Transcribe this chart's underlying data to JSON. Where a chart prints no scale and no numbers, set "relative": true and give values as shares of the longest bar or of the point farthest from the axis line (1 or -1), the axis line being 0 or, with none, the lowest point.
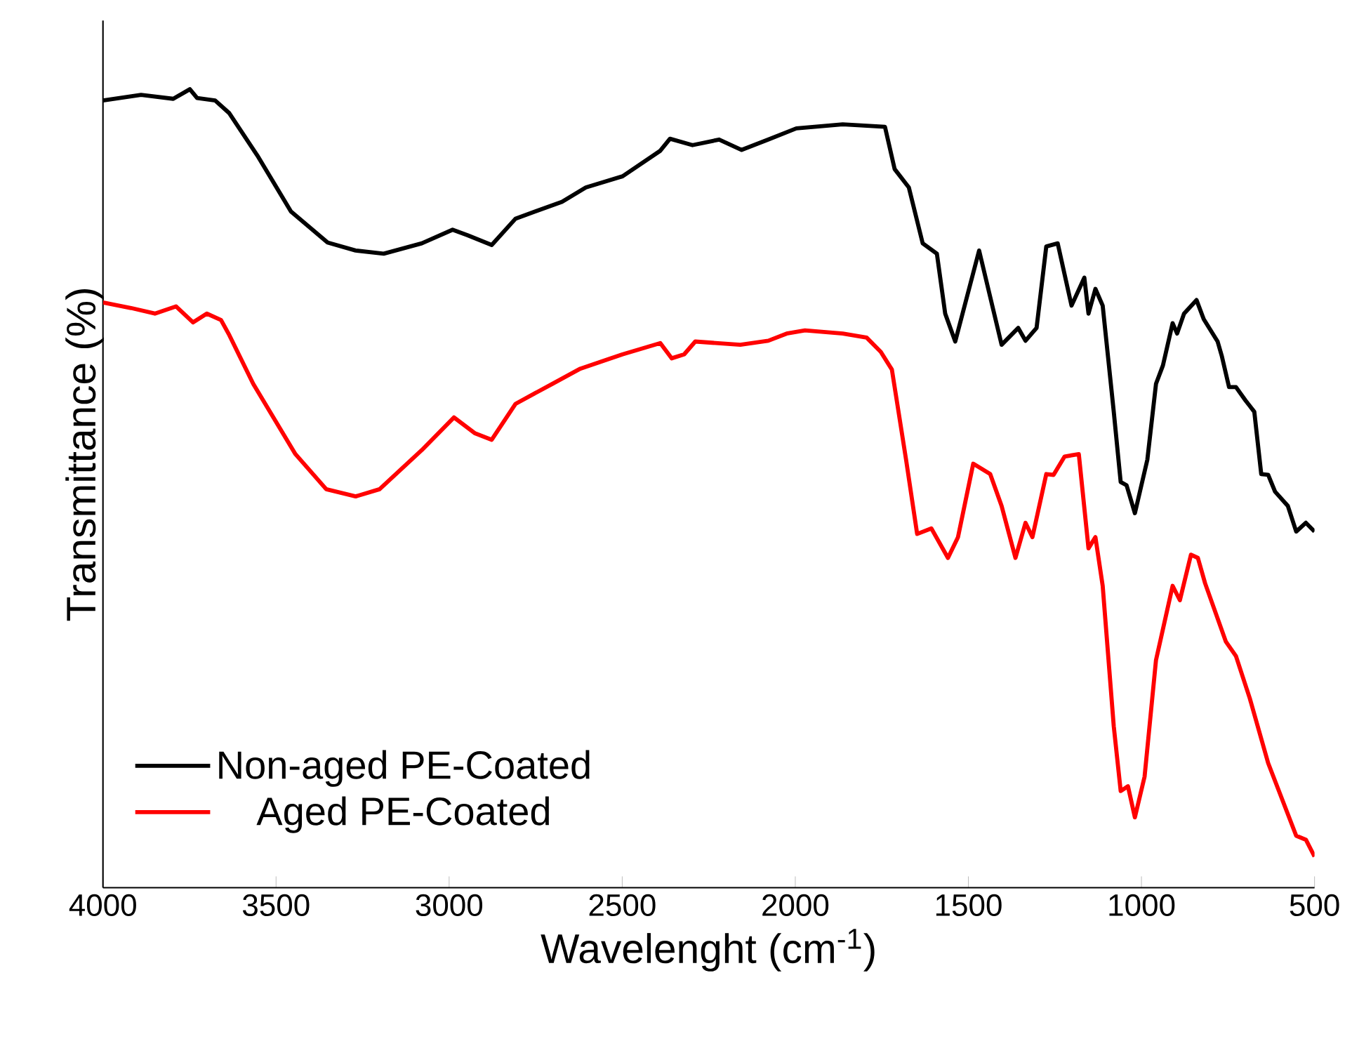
{
  "chart_data": {
    "type": "line",
    "relative": true,
    "xlabel": "Wavelenght (cm$^{-1}$)",
    "ylabel": "Transmittance (%)",
    "xlim": [
      4000,
      500
    ],
    "xticks": [
      4000,
      3500,
      3000,
      2500,
      2000,
      1500,
      1000,
      500
    ],
    "legend": "bottom left",
    "grid": false,
    "marker": "none",
    "line_style": "solid",
    "series": [
      {
        "name": "Non-aged PE-Coated",
        "color": "#000000",
        "x": [
          4000,
          3890,
          3797,
          3749,
          3728,
          3676,
          3635,
          3554,
          3457,
          3351,
          3270,
          3189,
          3079,
          2990,
          2946,
          2877,
          2808,
          2674,
          2605,
          2499,
          2390,
          2362,
          2297,
          2220,
          2155,
          2078,
          1997,
          1863,
          1741,
          1713,
          1672,
          1632,
          1591,
          1567,
          1538,
          1469,
          1404,
          1356,
          1335,
          1303,
          1275,
          1242,
          1202,
          1165,
          1153,
          1133,
          1112,
          1080,
          1060,
          1043,
          1019,
          983,
          958,
          938,
          910,
          897,
          877,
          841,
          820,
          780,
          768,
          747,
          727,
          699,
          674,
          654,
          634,
          614,
          577,
          553,
          525,
          500
        ],
        "values": [
          0.986,
          0.993,
          0.988,
          1.0,
          0.989,
          0.986,
          0.97,
          0.917,
          0.847,
          0.808,
          0.798,
          0.794,
          0.807,
          0.824,
          0.817,
          0.805,
          0.838,
          0.859,
          0.877,
          0.891,
          0.923,
          0.938,
          0.93,
          0.937,
          0.924,
          0.937,
          0.951,
          0.956,
          0.953,
          0.9,
          0.877,
          0.807,
          0.794,
          0.719,
          0.684,
          0.798,
          0.68,
          0.701,
          0.685,
          0.701,
          0.803,
          0.807,
          0.729,
          0.764,
          0.719,
          0.75,
          0.729,
          0.596,
          0.508,
          0.504,
          0.469,
          0.536,
          0.631,
          0.654,
          0.707,
          0.694,
          0.719,
          0.736,
          0.712,
          0.684,
          0.666,
          0.627,
          0.627,
          0.61,
          0.596,
          0.518,
          0.517,
          0.496,
          0.478,
          0.446,
          0.457,
          0.446
        ]
      },
      {
        "name": "Aged PE-Coated",
        "color": "#ff0000",
        "x": [
          4000,
          3919,
          3850,
          3789,
          3740,
          3700,
          3659,
          3635,
          3566,
          3444,
          3355,
          3270,
          3201,
          3079,
          2986,
          2925,
          2877,
          2808,
          2702,
          2621,
          2499,
          2390,
          2357,
          2321,
          2289,
          2159,
          2078,
          2025,
          1972,
          1863,
          1794,
          1753,
          1721,
          1680,
          1648,
          1607,
          1559,
          1530,
          1486,
          1437,
          1404,
          1364,
          1335,
          1315,
          1275,
          1254,
          1222,
          1181,
          1153,
          1133,
          1112,
          1080,
          1060,
          1039,
          1019,
          991,
          958,
          910,
          889,
          857,
          837,
          816,
          756,
          727,
          687,
          634,
          553,
          525,
          500
        ],
        "values": [
          0.733,
          0.726,
          0.719,
          0.728,
          0.708,
          0.719,
          0.711,
          0.692,
          0.631,
          0.543,
          0.499,
          0.49,
          0.499,
          0.548,
          0.589,
          0.569,
          0.561,
          0.606,
          0.631,
          0.65,
          0.668,
          0.682,
          0.663,
          0.668,
          0.684,
          0.68,
          0.685,
          0.694,
          0.698,
          0.694,
          0.689,
          0.671,
          0.649,
          0.536,
          0.443,
          0.45,
          0.413,
          0.439,
          0.531,
          0.518,
          0.478,
          0.413,
          0.457,
          0.439,
          0.518,
          0.517,
          0.54,
          0.543,
          0.425,
          0.439,
          0.378,
          0.202,
          0.121,
          0.127,
          0.088,
          0.139,
          0.285,
          0.378,
          0.36,
          0.417,
          0.413,
          0.381,
          0.308,
          0.29,
          0.237,
          0.156,
          0.065,
          0.06,
          0.039
        ]
      }
    ]
  }
}
